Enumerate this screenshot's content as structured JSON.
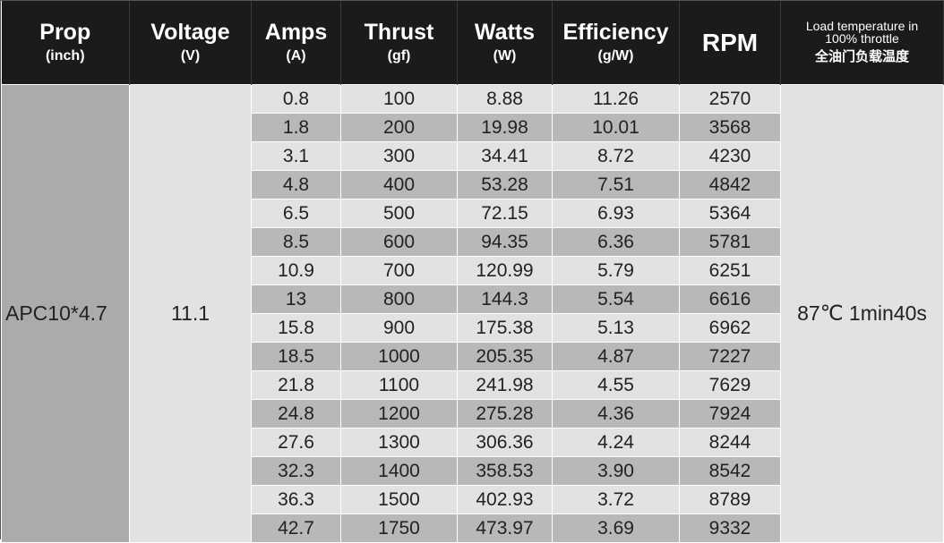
{
  "headers": [
    {
      "main": "Prop",
      "unit": "(inch)"
    },
    {
      "main": "Voltage",
      "unit": "(V)"
    },
    {
      "main": "Amps",
      "unit": "(A)"
    },
    {
      "main": "Thrust",
      "unit": "(gf)"
    },
    {
      "main": "Watts",
      "unit": "(W)"
    },
    {
      "main": "Efficiency",
      "unit": "(g/W)"
    },
    {
      "main": "RPM"
    },
    {
      "line1": "Load temperature in",
      "line2": "100% throttle",
      "cn": "全油门负载温度"
    }
  ],
  "prop": "APC10*4.7",
  "voltage": "11.1",
  "load_temperature": "87℃ 1min40s",
  "rows": [
    {
      "amps": "0.8",
      "thrust": "100",
      "watts": "8.88",
      "efficiency": "11.26",
      "rpm": "2570"
    },
    {
      "amps": "1.8",
      "thrust": "200",
      "watts": "19.98",
      "efficiency": "10.01",
      "rpm": "3568"
    },
    {
      "amps": "3.1",
      "thrust": "300",
      "watts": "34.41",
      "efficiency": "8.72",
      "rpm": "4230"
    },
    {
      "amps": "4.8",
      "thrust": "400",
      "watts": "53.28",
      "efficiency": "7.51",
      "rpm": "4842"
    },
    {
      "amps": "6.5",
      "thrust": "500",
      "watts": "72.15",
      "efficiency": "6.93",
      "rpm": "5364"
    },
    {
      "amps": "8.5",
      "thrust": "600",
      "watts": "94.35",
      "efficiency": "6.36",
      "rpm": "5781"
    },
    {
      "amps": "10.9",
      "thrust": "700",
      "watts": "120.99",
      "efficiency": "5.79",
      "rpm": "6251"
    },
    {
      "amps": "13",
      "thrust": "800",
      "watts": "144.3",
      "efficiency": "5.54",
      "rpm": "6616"
    },
    {
      "amps": "15.8",
      "thrust": "900",
      "watts": "175.38",
      "efficiency": "5.13",
      "rpm": "6962"
    },
    {
      "amps": "18.5",
      "thrust": "1000",
      "watts": "205.35",
      "efficiency": "4.87",
      "rpm": "7227"
    },
    {
      "amps": "21.8",
      "thrust": "1100",
      "watts": "241.98",
      "efficiency": "4.55",
      "rpm": "7629"
    },
    {
      "amps": "24.8",
      "thrust": "1200",
      "watts": "275.28",
      "efficiency": "4.36",
      "rpm": "7924"
    },
    {
      "amps": "27.6",
      "thrust": "1300",
      "watts": "306.36",
      "efficiency": "4.24",
      "rpm": "8244"
    },
    {
      "amps": "32.3",
      "thrust": "1400",
      "watts": "358.53",
      "efficiency": "3.90",
      "rpm": "8542"
    },
    {
      "amps": "36.3",
      "thrust": "1500",
      "watts": "402.93",
      "efficiency": "3.72",
      "rpm": "8789"
    },
    {
      "amps": "42.7",
      "thrust": "1750",
      "watts": "473.97",
      "efficiency": "3.69",
      "rpm": "9332"
    }
  ]
}
